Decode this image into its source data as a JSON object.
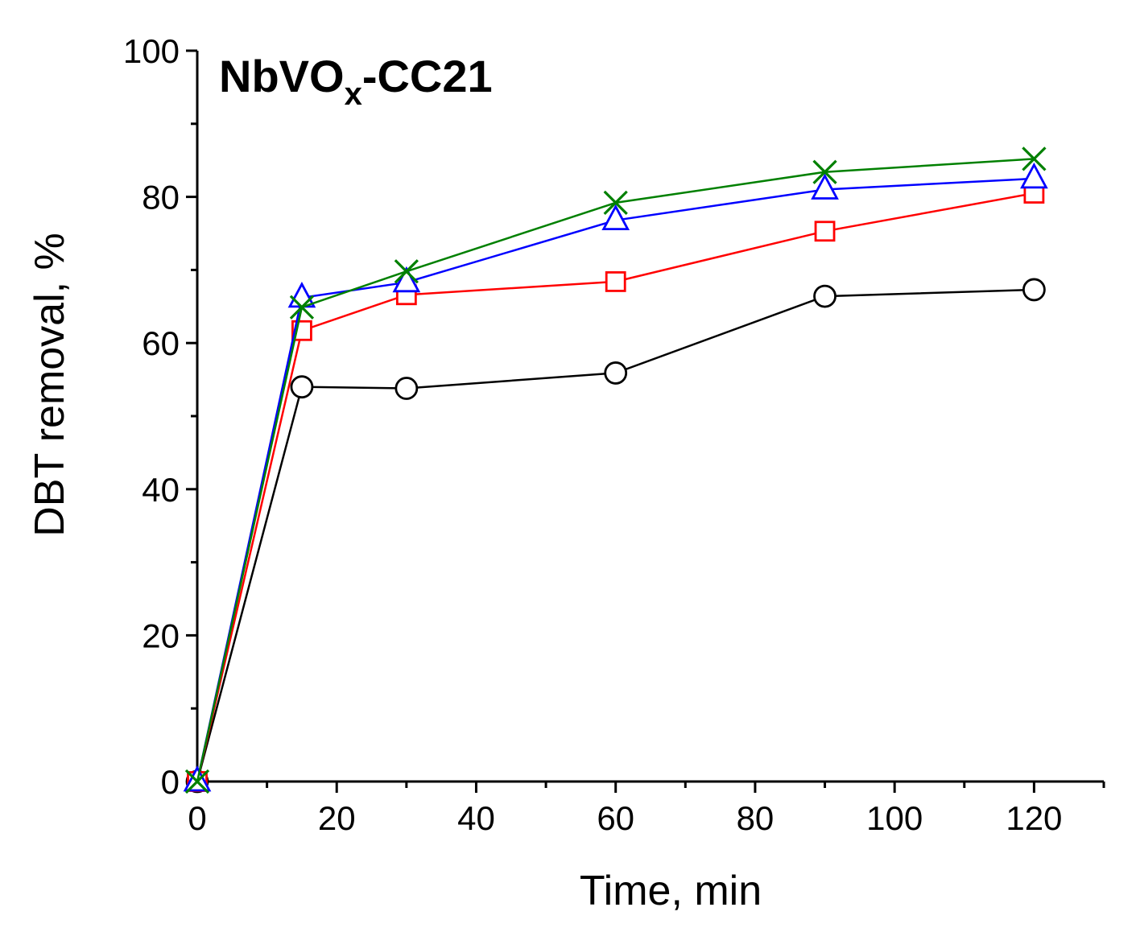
{
  "chart_data": {
    "type": "line",
    "title": {
      "main": "NbVO",
      "subscript": "x",
      "suffix": "-CC21"
    },
    "xlabel": "Time, min",
    "ylabel": "DBT removal, %",
    "xlim": [
      0,
      130
    ],
    "ylim": [
      0,
      100
    ],
    "xticks": [
      0,
      20,
      40,
      60,
      80,
      100,
      120
    ],
    "yticks": [
      0,
      20,
      40,
      60,
      80,
      100
    ],
    "xtick_labels": [
      "0",
      "20",
      "40",
      "60",
      "80",
      "100",
      "120"
    ],
    "ytick_labels": [
      "0",
      "20",
      "40",
      "60",
      "80",
      "100"
    ],
    "x_minor_step": 10,
    "y_minor_step": 10,
    "x": [
      0,
      15,
      30,
      60,
      90,
      120
    ],
    "series": [
      {
        "name": "circle",
        "marker": "circle",
        "color": "#000000",
        "values": [
          0,
          54.0,
          53.8,
          55.9,
          66.4,
          67.3
        ]
      },
      {
        "name": "square",
        "marker": "square",
        "color": "#ff0000",
        "values": [
          0,
          61.7,
          66.6,
          68.4,
          75.3,
          80.5
        ]
      },
      {
        "name": "triangle",
        "marker": "triangle",
        "color": "#0000ff",
        "values": [
          0,
          66.2,
          68.3,
          76.8,
          81.0,
          82.5
        ]
      },
      {
        "name": "cross",
        "marker": "x",
        "color": "#008000",
        "values": [
          0,
          64.9,
          69.8,
          79.2,
          83.4,
          85.2
        ]
      }
    ]
  }
}
